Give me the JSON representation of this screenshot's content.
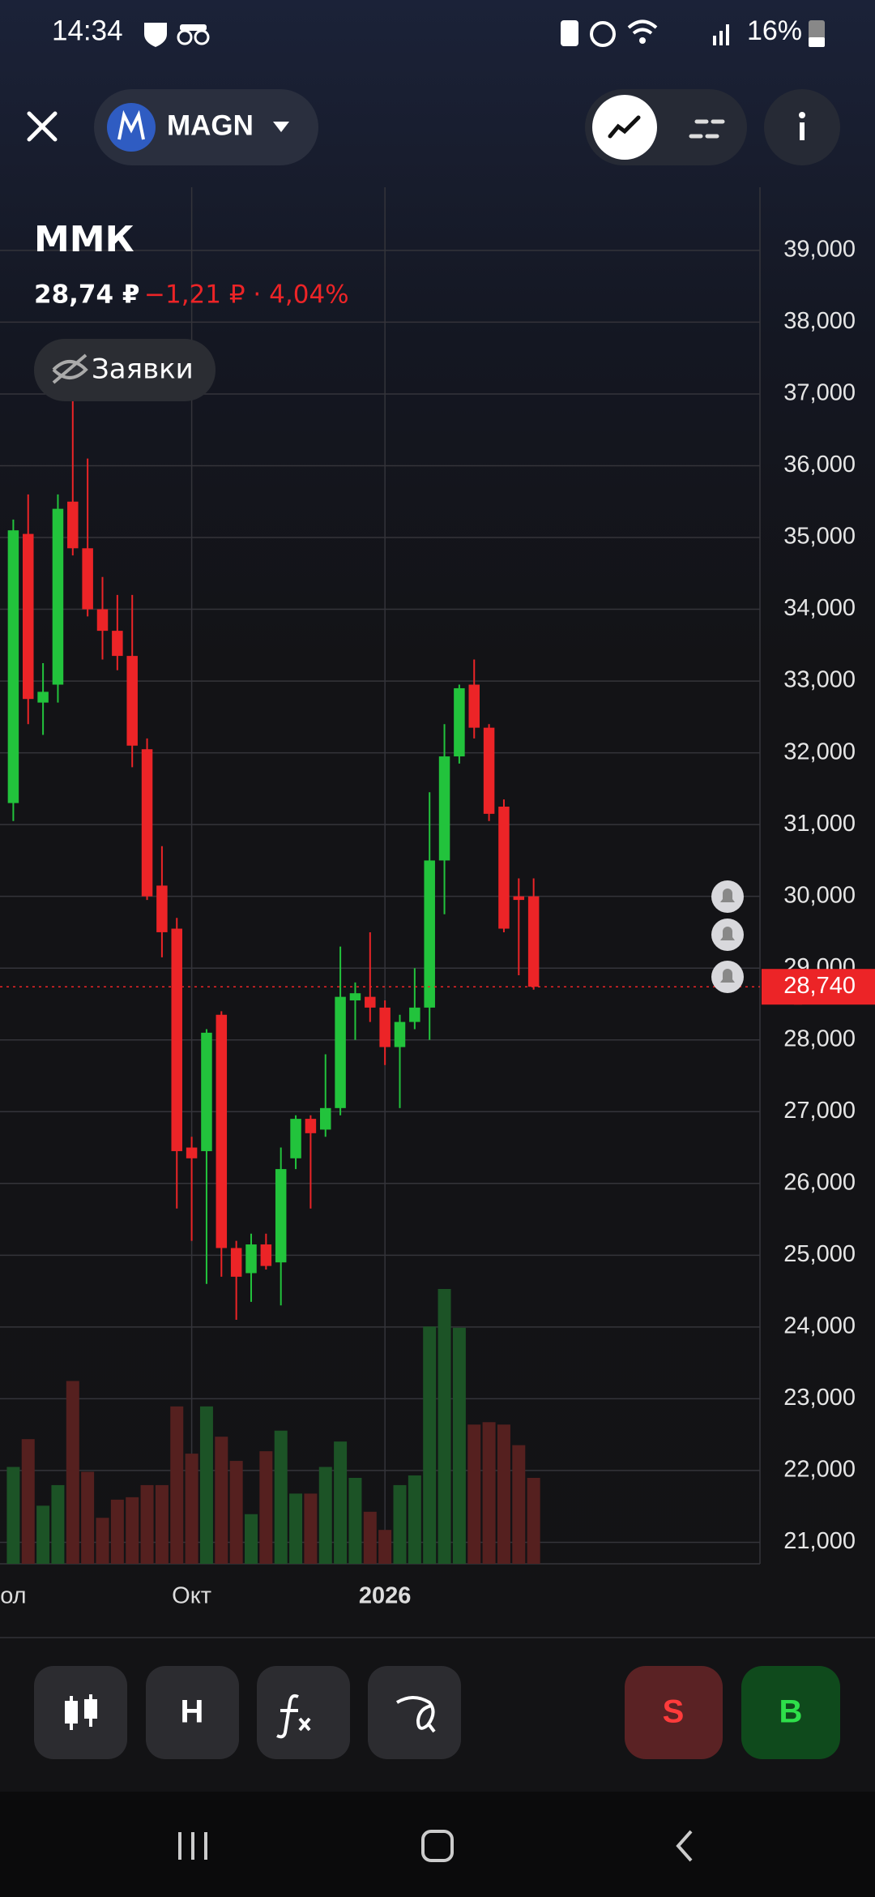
{
  "status_bar": {
    "time": "14:34",
    "battery": "16%"
  },
  "header": {
    "ticker": "MAGN"
  },
  "quote": {
    "name": "ММК",
    "price": "28,74 ₽",
    "change": "−1,21 ₽ · 4,04%"
  },
  "orders_button": "Заявки",
  "chart_data": {
    "type": "candlestick",
    "categories": [
      "ол",
      null,
      null,
      null,
      null,
      null,
      null,
      null,
      null,
      null,
      null,
      null,
      "Окт",
      null,
      null,
      null,
      null,
      null,
      null,
      null,
      null,
      null,
      null,
      null,
      null,
      "2026",
      null,
      null,
      null,
      null,
      null,
      null,
      null,
      null,
      null,
      null
    ],
    "open": [
      31300,
      35050,
      32700,
      32950,
      35500,
      34850,
      34000,
      33700,
      33350,
      32050,
      30150,
      29550,
      26500,
      26450,
      28350,
      25100,
      24750,
      25150,
      24900,
      26350,
      26900,
      26750,
      27050,
      28550,
      28600,
      28450,
      27900,
      28250,
      28450,
      30500,
      31950,
      32950,
      32350,
      31250,
      30000,
      30000
    ],
    "high": [
      35250,
      35600,
      33250,
      35600,
      37550,
      36100,
      34450,
      34200,
      34200,
      32200,
      30700,
      29700,
      26650,
      28150,
      28400,
      25200,
      25300,
      25300,
      26500,
      26950,
      26950,
      27800,
      29300,
      28800,
      29500,
      28550,
      28350,
      29000,
      31450,
      32400,
      32950,
      33300,
      32400,
      31350,
      30250,
      30250
    ],
    "low": [
      31050,
      32400,
      32250,
      32700,
      34750,
      33900,
      33300,
      33150,
      31800,
      29950,
      29150,
      25650,
      25200,
      24600,
      24700,
      24100,
      24350,
      24800,
      24300,
      26200,
      25650,
      26650,
      26950,
      28000,
      28250,
      27650,
      27050,
      28150,
      28000,
      29750,
      31850,
      32200,
      31050,
      29500,
      28900,
      28700
    ],
    "close": [
      35100,
      32750,
      32850,
      35400,
      34850,
      34000,
      33700,
      33350,
      32100,
      30000,
      29500,
      26450,
      26350,
      28100,
      25100,
      24700,
      25150,
      24850,
      26200,
      26900,
      26700,
      27050,
      28600,
      28650,
      28450,
      27900,
      28250,
      28450,
      30500,
      31950,
      32900,
      32350,
      31150,
      29550,
      29950,
      28740
    ],
    "volume": [
      80,
      103,
      48,
      65,
      151,
      76,
      38,
      53,
      55,
      65,
      65,
      130,
      91,
      130,
      105,
      85,
      41,
      93,
      110,
      58,
      58,
      80,
      101,
      71,
      43,
      28,
      65,
      73,
      196,
      227,
      195,
      115,
      117,
      115,
      98,
      71
    ],
    "ylim": [
      20700,
      39880
    ],
    "yticks": [
      {
        "value": 21000,
        "label": "21,000"
      },
      {
        "value": 22000,
        "label": "22,000"
      },
      {
        "value": 23000,
        "label": "23,000"
      },
      {
        "value": 24000,
        "label": "24,000"
      },
      {
        "value": 25000,
        "label": "25,000"
      },
      {
        "value": 26000,
        "label": "26,000"
      },
      {
        "value": 27000,
        "label": "27,000"
      },
      {
        "value": 28000,
        "label": "28,000"
      },
      {
        "value": 29000,
        "label": "29,000"
      },
      {
        "value": 30000,
        "label": "30,000"
      },
      {
        "value": 31000,
        "label": "31,000"
      },
      {
        "value": 32000,
        "label": "32,000"
      },
      {
        "value": 33000,
        "label": "33,000"
      },
      {
        "value": 34000,
        "label": "34,000"
      },
      {
        "value": 35000,
        "label": "35,000"
      },
      {
        "value": 36000,
        "label": "36,000"
      },
      {
        "value": 37000,
        "label": "37,000"
      },
      {
        "value": 38000,
        "label": "38,000"
      },
      {
        "value": 39000,
        "label": "39,000"
      }
    ],
    "current_price": {
      "value": 28740,
      "label": "28,740"
    },
    "up_color": "#22c33c",
    "down_color": "#ec2427",
    "up_volume_color": "#1c5326",
    "down_volume_color": "#55201f",
    "grid": true
  },
  "toolbar": {
    "indicator": "H",
    "sell": "S",
    "buy": "B"
  }
}
